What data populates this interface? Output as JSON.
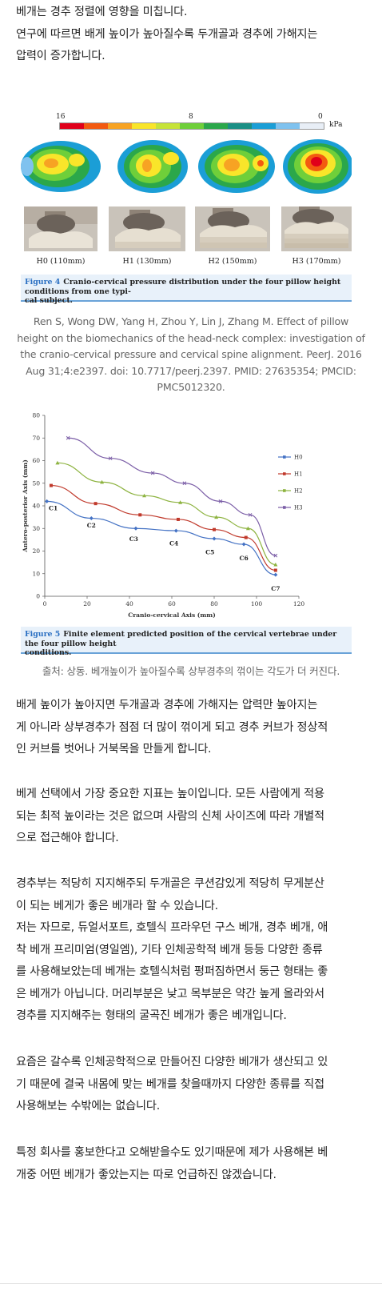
{
  "intro_paragraph": [
    "베개는 경추 정렬에 영향을 미칩니다.",
    "연구에 따르면 배게 높이가 높아질수록 두개골과 경추에 가해지는",
    "압력이 증가합니다."
  ],
  "figure4": {
    "scale_labels": [
      "16",
      "8",
      "0",
      "kPa"
    ],
    "scale_colors": [
      "#e0001a",
      "#f35a10",
      "#f7a323",
      "#f9e52a",
      "#c6e339",
      "#6fcf3a",
      "#2ba74a",
      "#1a8f85",
      "#1b9ed6",
      "#7fc2ef",
      "#e8eef6"
    ],
    "panel_labels": [
      "H0 (110mm)",
      "H1 (130mm)",
      "H2 (150mm)",
      "H3 (170mm)"
    ],
    "caption_label": "Figure 4",
    "caption_text": "Cranio-cervical pressure distribution under the four pillow height conditions from one typi-",
    "caption_text2": "cal subject."
  },
  "citation": [
    "Ren S, Wong DW, Yang H, Zhou Y, Lin J, Zhang M. Effect of pillow",
    "height on the biomechanics of the head-neck complex: investigation of",
    "the cranio-cervical pressure and cervical spine alignment. PeerJ. 2016",
    "Aug 31;4:e2397. doi: 10.7717/peerj.2397. PMID: 27635354; PMCID:",
    "PMC5012320."
  ],
  "chart_data": {
    "type": "line",
    "xlabel": "Cranio-cervical Axis (mm)",
    "ylabel": "Antero-posterior Axis (mm)",
    "xlim": [
      0,
      120
    ],
    "ylim": [
      0,
      80
    ],
    "xticks": [
      "0",
      "20",
      "40",
      "60",
      "80",
      "100",
      "120"
    ],
    "yticks": [
      "0",
      "10",
      "20",
      "30",
      "40",
      "50",
      "60",
      "70",
      "80"
    ],
    "grid": false,
    "legend_position": "right",
    "series": [
      {
        "name": "H0",
        "color": "#4472c4",
        "marker": "diamond",
        "x": [
          1,
          22,
          43,
          62,
          80,
          94,
          109
        ],
        "y": [
          42,
          34.5,
          30,
          29,
          25.5,
          23,
          9.5
        ]
      },
      {
        "name": "H1",
        "color": "#c0392b",
        "marker": "square",
        "x": [
          3,
          24,
          45,
          63,
          80,
          95,
          109
        ],
        "y": [
          49,
          41,
          36,
          34,
          29.5,
          26,
          11.5
        ]
      },
      {
        "name": "H2",
        "color": "#8db340",
        "marker": "triangle",
        "x": [
          6,
          27,
          47,
          64,
          81,
          96,
          109
        ],
        "y": [
          59,
          50.5,
          44.5,
          41.5,
          35,
          30,
          14
        ]
      },
      {
        "name": "H3",
        "color": "#7b5ea7",
        "marker": "x",
        "x": [
          11,
          31,
          51,
          66,
          83,
          97,
          109
        ],
        "y": [
          70,
          61,
          54.5,
          50,
          42,
          36,
          18
        ]
      }
    ],
    "annotations": [
      {
        "text": "C1",
        "x": 4,
        "y": 38
      },
      {
        "text": "C2",
        "x": 22,
        "y": 30.5
      },
      {
        "text": "C3",
        "x": 42,
        "y": 24.5
      },
      {
        "text": "C4",
        "x": 61,
        "y": 22.5
      },
      {
        "text": "C5",
        "x": 78,
        "y": 18.5
      },
      {
        "text": "C6",
        "x": 94,
        "y": 16
      },
      {
        "text": "C7",
        "x": 109,
        "y": 2.5
      }
    ]
  },
  "figure5": {
    "caption_label": "Figure 5",
    "caption_text": "Finite element predicted position of the cervical vertebrae under the four pillow height",
    "caption_text2": "conditions."
  },
  "source_note": "출처: 상동. 베개높이가 높아질수록 상부경추의 꺾이는 각도가 더 커진다.",
  "paragraph2": [
    "배게 높이가 높아지면 두개골과 경추에 가해지는 압력만 높아지는",
    "게 아니라 상부경추가 점점 더 많이 꺾이게 되고 경추 커브가 정상적",
    "인 커브를 벗어나 거북목을 만들게 합니다."
  ],
  "paragraph3": [
    "베게 선택에서 가장 중요한 지표는 높이입니다. 모든 사람에게 적용",
    "되는 최적 높이라는 것은 없으며 사람의 신체 사이즈에 따라 개별적",
    "으로 접근해야 합니다."
  ],
  "paragraph4": [
    "경추부는 적당히 지지해주되 두개골은 쿠션감있게 적당히 무게분산",
    "이 되는 베게가 좋은 베개라 할 수 있습니다.",
    "저는 자므로, 듀얼서포트, 호텔식 프라우던 구스 베개, 경추 베개, 애",
    "착 베개 프리미엄(영일엠), 기타 인체공학적 베개 등등 다양한 종류",
    "를 사용해보았는데 베개는 호텔식처럼 펑퍼짐하면서 둥근 형태는 좋",
    "은 베개가 아닙니다. 머리부분은 낮고 목부분은 약간 높게 올라와서",
    "경추를 지지해주는 형태의 굴곡진 베개가 좋은 베개입니다."
  ],
  "paragraph5": [
    "요즘은 갈수록 인체공학적으로 만들어진 다양한 베개가 생산되고 있",
    "기 때문에 결국 내몸에 맞는 베개를 찾을때까지 다양한 종류를 직접",
    "사용해보는 수밖에는 없습니다."
  ],
  "paragraph6": [
    "특정 회사를 홍보한다고 오해받을수도 있기때문에 제가 사용해본 베",
    "개중 어떤 베개가 좋았는지는 따로 언급하진 않겠습니다."
  ]
}
